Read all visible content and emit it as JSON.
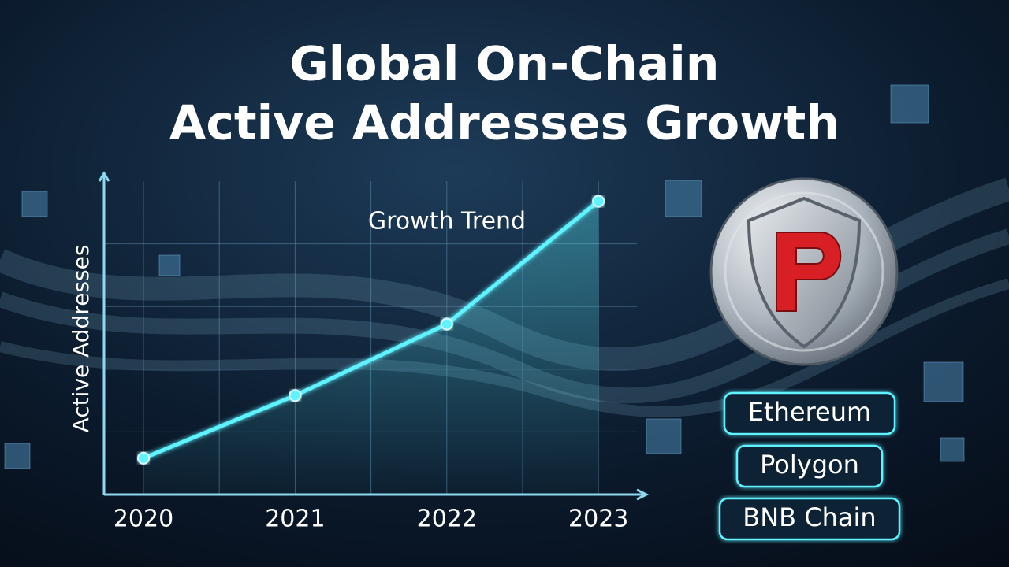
{
  "chart_data": {
    "type": "line",
    "title": [
      "Global On-Chain",
      "Active Addresses Growth"
    ],
    "annotation": "Growth Trend",
    "y_label": "Active Addresses",
    "categories": [
      "2020",
      "2021",
      "2022",
      "2023"
    ],
    "values": [
      0.58,
      1.58,
      2.72,
      4.68
    ],
    "color": "#5ef2ff",
    "ylim": [
      0,
      5
    ],
    "yticks": [
      1,
      2,
      3,
      4
    ],
    "grid": true,
    "badges": [
      "Ethereum",
      "Polygon",
      "BNB Chain"
    ]
  }
}
